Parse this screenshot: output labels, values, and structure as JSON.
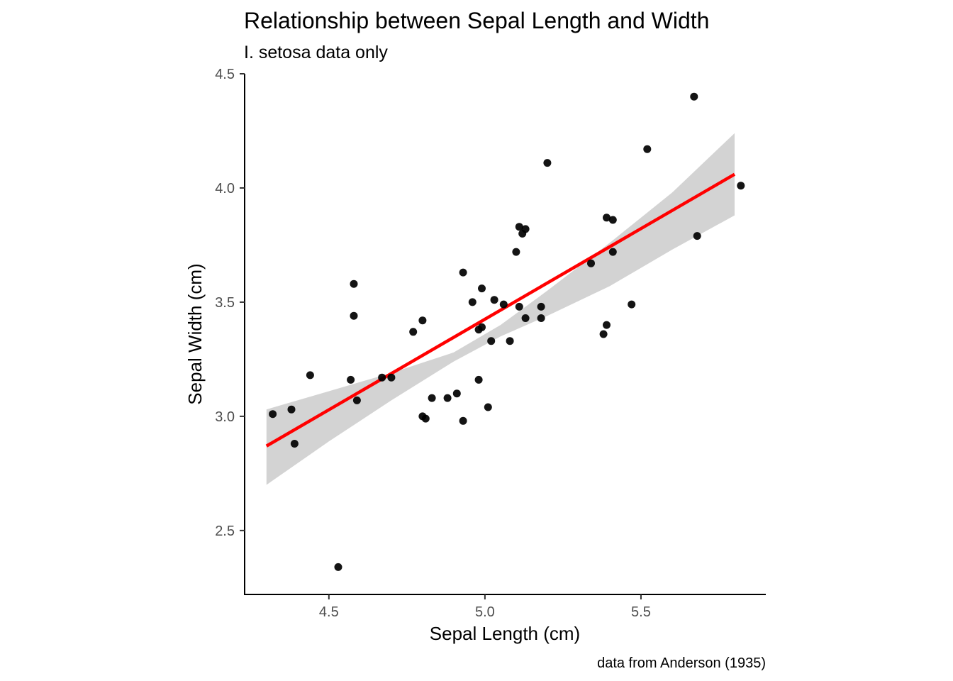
{
  "chart_data": {
    "type": "scatter",
    "title": "Relationship between Sepal Length and Width",
    "subtitle": "I. setosa data only",
    "xlabel": "Sepal Length (cm)",
    "ylabel": "Sepal Width (cm)",
    "caption": "data from Anderson (1935)",
    "xlim": [
      4.23,
      5.9
    ],
    "ylim": [
      2.22,
      4.5
    ],
    "x_ticks": [
      "4.5",
      "5.0",
      "5.5"
    ],
    "y_ticks": [
      "2.5",
      "3.0",
      "3.5",
      "4.0",
      "4.5"
    ],
    "grid": false,
    "point_color": "#000000",
    "fit_line_color": "#ff0000",
    "band_color": "#d3d3d3",
    "points": [
      {
        "x": 4.32,
        "y": 3.01
      },
      {
        "x": 4.38,
        "y": 3.03
      },
      {
        "x": 4.39,
        "y": 2.88
      },
      {
        "x": 4.44,
        "y": 3.18
      },
      {
        "x": 4.53,
        "y": 2.34
      },
      {
        "x": 4.57,
        "y": 3.16
      },
      {
        "x": 4.58,
        "y": 3.58
      },
      {
        "x": 4.58,
        "y": 3.44
      },
      {
        "x": 4.59,
        "y": 3.07
      },
      {
        "x": 4.67,
        "y": 3.17
      },
      {
        "x": 4.7,
        "y": 3.17
      },
      {
        "x": 4.77,
        "y": 3.37
      },
      {
        "x": 4.8,
        "y": 3.42
      },
      {
        "x": 4.8,
        "y": 3.0
      },
      {
        "x": 4.81,
        "y": 2.99
      },
      {
        "x": 4.83,
        "y": 3.08
      },
      {
        "x": 4.88,
        "y": 3.08
      },
      {
        "x": 4.91,
        "y": 3.1
      },
      {
        "x": 4.93,
        "y": 3.63
      },
      {
        "x": 4.93,
        "y": 2.98
      },
      {
        "x": 4.96,
        "y": 3.5
      },
      {
        "x": 4.98,
        "y": 3.38
      },
      {
        "x": 4.98,
        "y": 3.16
      },
      {
        "x": 4.99,
        "y": 3.56
      },
      {
        "x": 4.99,
        "y": 3.39
      },
      {
        "x": 5.01,
        "y": 3.04
      },
      {
        "x": 5.02,
        "y": 3.33
      },
      {
        "x": 5.03,
        "y": 3.51
      },
      {
        "x": 5.06,
        "y": 3.49
      },
      {
        "x": 5.08,
        "y": 3.33
      },
      {
        "x": 5.1,
        "y": 3.72
      },
      {
        "x": 5.11,
        "y": 3.83
      },
      {
        "x": 5.11,
        "y": 3.48
      },
      {
        "x": 5.12,
        "y": 3.8
      },
      {
        "x": 5.13,
        "y": 3.82
      },
      {
        "x": 5.13,
        "y": 3.43
      },
      {
        "x": 5.18,
        "y": 3.48
      },
      {
        "x": 5.18,
        "y": 3.43
      },
      {
        "x": 5.2,
        "y": 4.11
      },
      {
        "x": 5.34,
        "y": 3.67
      },
      {
        "x": 5.38,
        "y": 3.36
      },
      {
        "x": 5.39,
        "y": 3.87
      },
      {
        "x": 5.39,
        "y": 3.4
      },
      {
        "x": 5.41,
        "y": 3.86
      },
      {
        "x": 5.41,
        "y": 3.72
      },
      {
        "x": 5.47,
        "y": 3.49
      },
      {
        "x": 5.52,
        "y": 4.17
      },
      {
        "x": 5.67,
        "y": 4.4
      },
      {
        "x": 5.68,
        "y": 3.79
      },
      {
        "x": 5.82,
        "y": 4.01
      }
    ],
    "fit": {
      "x": [
        4.3,
        5.8
      ],
      "y": [
        2.87,
        4.06
      ],
      "band_x": [
        4.3,
        4.5,
        4.7,
        4.9,
        5.05,
        5.2,
        5.4,
        5.6,
        5.8
      ],
      "band_upper": [
        3.03,
        3.11,
        3.19,
        3.28,
        3.4,
        3.55,
        3.76,
        3.98,
        4.24
      ],
      "band_lower": [
        2.7,
        2.89,
        3.07,
        3.24,
        3.35,
        3.44,
        3.57,
        3.73,
        3.88
      ]
    }
  }
}
